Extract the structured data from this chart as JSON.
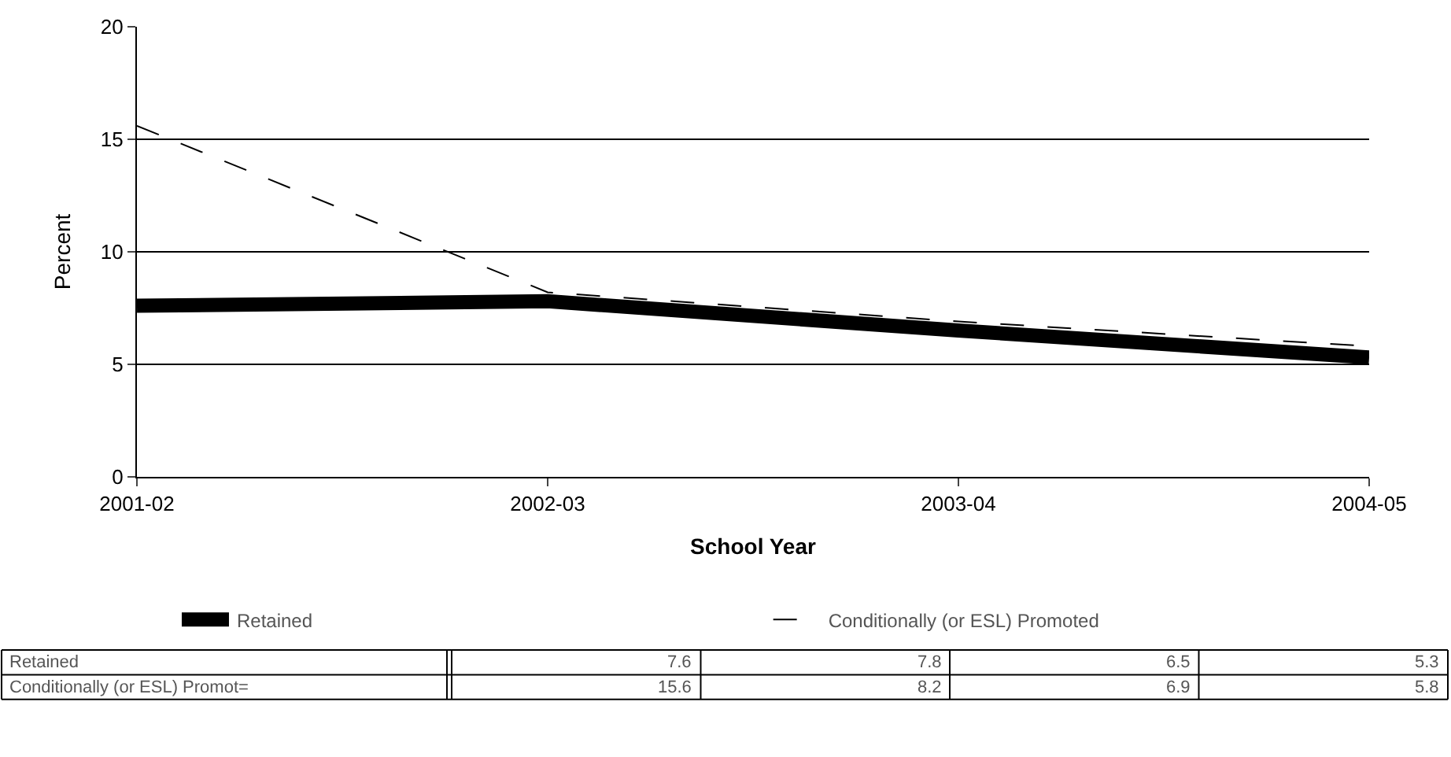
{
  "chart_data": [
    {
      "type": "line",
      "xlabel": "School Year",
      "ylabel": "Percent",
      "categories": [
        "2001-02",
        "2002-03",
        "2003-04",
        "2004-05"
      ],
      "series": [
        {
          "name": "Retained",
          "color": "#000000",
          "line_style": "solid",
          "values": [
            7.6,
            7.8,
            6.5,
            5.3
          ]
        },
        {
          "name": "Conditionally (or ESL) Promoted",
          "color": "#000000",
          "line_style": "dashed",
          "values": [
            15.6,
            8.2,
            6.9,
            5.8
          ]
        }
      ],
      "ylim": [
        0,
        20
      ],
      "yticks": [
        0,
        5,
        10,
        15,
        20
      ],
      "grid": "y",
      "legend": "bottom",
      "marker": "none"
    },
    {
      "type": "other",
      "annotations": [
        "Retained",
        "7.6",
        "7.8",
        "6.5",
        "5.3",
        "Conditionally (or ESL) Promot=",
        "15.6",
        "8.2",
        "6.9",
        "5.8"
      ]
    }
  ]
}
